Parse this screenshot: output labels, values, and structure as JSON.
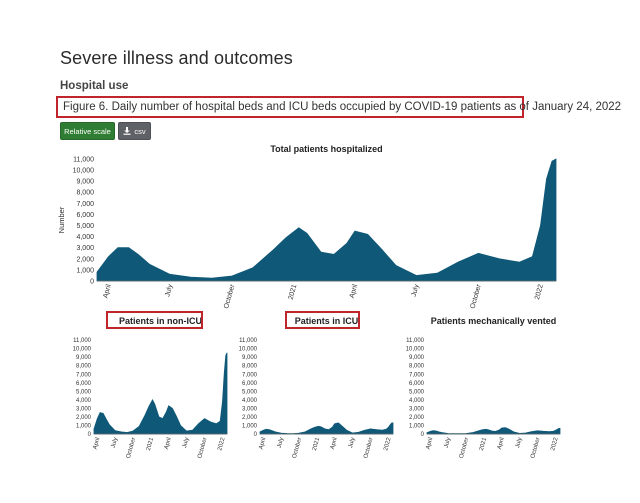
{
  "page": {
    "title": "Severe illness and outcomes",
    "subtitle": "Hospital use",
    "figure_caption": "Figure 6. Daily number of hospital beds and ICU beds occupied by COVID-19 patients as of January 24, 2022"
  },
  "buttons": {
    "relative_scale": "Relative scale",
    "csv": "csv"
  },
  "colors": {
    "accent": "#2f7d32",
    "series": "#0f5878",
    "highlight": "#c0252b"
  },
  "icons": {
    "csv": "download-icon"
  },
  "chart_data": [
    {
      "type": "area",
      "title": "Total patients hospitalized",
      "ylabel": "Number",
      "ylim": [
        0,
        11000
      ],
      "yticks": [
        "0",
        "1,000",
        "2,000",
        "3,000",
        "4,000",
        "5,000",
        "6,000",
        "7,000",
        "8,000",
        "9,000",
        "10,000",
        "11,000"
      ],
      "xticks": [
        "April",
        "July",
        "October",
        "2021",
        "April",
        "July",
        "October",
        "2022"
      ],
      "series": [
        {
          "x": [
            "2020-03-15",
            "2020-04-01",
            "2020-04-15",
            "2020-05-01",
            "2020-05-15",
            "2020-06-01",
            "2020-07-01",
            "2020-08-01",
            "2020-09-01",
            "2020-10-01",
            "2020-11-01",
            "2020-12-01",
            "2020-12-20",
            "2021-01-08",
            "2021-01-20",
            "2021-02-10",
            "2021-03-01",
            "2021-03-20",
            "2021-04-01",
            "2021-04-20",
            "2021-05-10",
            "2021-06-01",
            "2021-07-01",
            "2021-08-01",
            "2021-09-01",
            "2021-10-01",
            "2021-11-01",
            "2021-12-01",
            "2021-12-20",
            "2022-01-01",
            "2022-01-10",
            "2022-01-18",
            "2022-01-24"
          ],
          "values": [
            800,
            2200,
            3000,
            3000,
            2400,
            1500,
            600,
            350,
            250,
            450,
            1200,
            2800,
            3900,
            4800,
            4300,
            2600,
            2400,
            3400,
            4500,
            4200,
            2900,
            1400,
            500,
            700,
            1700,
            2500,
            2000,
            1700,
            2200,
            5000,
            9200,
            10800,
            11000
          ]
        }
      ]
    },
    {
      "type": "area",
      "title": "Patients in non-ICU",
      "ylim": [
        0,
        11000
      ],
      "yticks": [
        "0",
        "1,000",
        "2,000",
        "3,000",
        "4,000",
        "5,000",
        "6,000",
        "7,000",
        "8,000",
        "9,000",
        "10,000",
        "11,000"
      ],
      "xticks": [
        "April",
        "July",
        "October",
        "2021",
        "April",
        "July",
        "October",
        "2022"
      ],
      "series": [
        {
          "x": [
            "2020-03-15",
            "2020-04-01",
            "2020-04-15",
            "2020-05-01",
            "2020-05-15",
            "2020-06-01",
            "2020-07-01",
            "2020-08-01",
            "2020-09-01",
            "2020-10-01",
            "2020-11-01",
            "2020-12-01",
            "2020-12-20",
            "2021-01-08",
            "2021-01-20",
            "2021-02-10",
            "2021-03-01",
            "2021-03-20",
            "2021-04-01",
            "2021-04-20",
            "2021-05-10",
            "2021-06-01",
            "2021-07-01",
            "2021-08-01",
            "2021-09-01",
            "2021-10-01",
            "2021-11-01",
            "2021-12-01",
            "2021-12-20",
            "2022-01-01",
            "2022-01-10",
            "2022-01-18",
            "2022-01-24"
          ],
          "values": [
            600,
            1800,
            2500,
            2400,
            1800,
            1100,
            400,
            250,
            180,
            350,
            900,
            2200,
            3200,
            4000,
            3500,
            2000,
            1800,
            2600,
            3300,
            3000,
            2100,
            1000,
            350,
            450,
            1200,
            1800,
            1400,
            1200,
            1500,
            3800,
            7200,
            9200,
            9500
          ]
        }
      ]
    },
    {
      "type": "area",
      "title": "Patients in ICU",
      "ylim": [
        0,
        11000
      ],
      "yticks": [
        "0",
        "1,000",
        "2,000",
        "3,000",
        "4,000",
        "5,000",
        "6,000",
        "7,000",
        "8,000",
        "9,000",
        "10,000",
        "11,000"
      ],
      "xticks": [
        "April",
        "July",
        "October",
        "2021",
        "April",
        "July",
        "October",
        "2022"
      ],
      "series": [
        {
          "x": [
            "2020-03-15",
            "2020-04-01",
            "2020-04-15",
            "2020-05-01",
            "2020-05-15",
            "2020-06-01",
            "2020-07-01",
            "2020-08-01",
            "2020-09-01",
            "2020-10-01",
            "2020-11-01",
            "2020-12-01",
            "2020-12-20",
            "2021-01-08",
            "2021-01-20",
            "2021-02-10",
            "2021-03-01",
            "2021-03-20",
            "2021-04-01",
            "2021-04-20",
            "2021-05-10",
            "2021-06-01",
            "2021-07-01",
            "2021-08-01",
            "2021-09-01",
            "2021-10-01",
            "2021-11-01",
            "2021-12-01",
            "2021-12-20",
            "2022-01-01",
            "2022-01-10",
            "2022-01-18",
            "2022-01-24"
          ],
          "values": [
            250,
            450,
            550,
            500,
            400,
            250,
            100,
            60,
            50,
            100,
            250,
            600,
            800,
            900,
            850,
            600,
            500,
            800,
            1200,
            1300,
            900,
            450,
            120,
            200,
            450,
            600,
            500,
            450,
            550,
            800,
            1100,
            1300,
            1300
          ]
        }
      ]
    },
    {
      "type": "area",
      "title": "Patients mechanically vented",
      "ylim": [
        0,
        11000
      ],
      "yticks": [
        "0",
        "1,000",
        "2,000",
        "3,000",
        "4,000",
        "5,000",
        "6,000",
        "7,000",
        "8,000",
        "9,000",
        "10,000",
        "11,000"
      ],
      "xticks": [
        "April",
        "July",
        "October",
        "2021",
        "April",
        "July",
        "October",
        "2022"
      ],
      "series": [
        {
          "x": [
            "2020-03-15",
            "2020-04-01",
            "2020-04-15",
            "2020-05-01",
            "2020-05-15",
            "2020-06-01",
            "2020-07-01",
            "2020-08-01",
            "2020-09-01",
            "2020-10-01",
            "2020-11-01",
            "2020-12-01",
            "2020-12-20",
            "2021-01-08",
            "2021-01-20",
            "2021-02-10",
            "2021-03-01",
            "2021-03-20",
            "2021-04-01",
            "2021-04-20",
            "2021-05-10",
            "2021-06-01",
            "2021-07-01",
            "2021-08-01",
            "2021-09-01",
            "2021-10-01",
            "2021-11-01",
            "2021-12-01",
            "2021-12-20",
            "2022-01-01",
            "2022-01-10",
            "2022-01-18",
            "2022-01-24"
          ],
          "values": [
            150,
            300,
            400,
            350,
            250,
            150,
            60,
            40,
            30,
            60,
            150,
            350,
            480,
            550,
            500,
            350,
            300,
            480,
            700,
            750,
            550,
            250,
            70,
            120,
            280,
            380,
            320,
            280,
            320,
            420,
            550,
            650,
            650
          ]
        }
      ]
    }
  ]
}
